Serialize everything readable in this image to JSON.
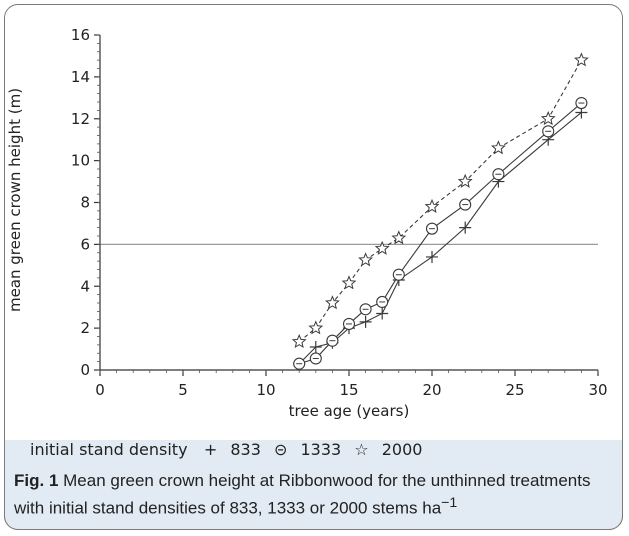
{
  "chart_data": {
    "type": "line",
    "xlabel": "tree age (years)",
    "ylabel": "mean green crown height (m)",
    "xlim": [
      0,
      30
    ],
    "ylim": [
      0,
      16
    ],
    "xticks": [
      0,
      5,
      10,
      15,
      20,
      25,
      30
    ],
    "yticks": [
      0,
      2,
      4,
      6,
      8,
      10,
      12,
      14,
      16
    ],
    "reference_line_y": 6,
    "legend_title": "initial stand density",
    "legend_placement": "bottom",
    "series": [
      {
        "name": "833",
        "marker": "plus",
        "line": "solid",
        "x": [
          12,
          13,
          14,
          15,
          16,
          17,
          18,
          20,
          22,
          24,
          27,
          29
        ],
        "y": [
          0.3,
          1.1,
          1.3,
          2.0,
          2.3,
          2.7,
          4.3,
          5.4,
          6.8,
          9.0,
          11.0,
          12.3
        ]
      },
      {
        "name": "1333",
        "marker": "circle",
        "line": "solid",
        "x": [
          12,
          13,
          14,
          15,
          16,
          17,
          18,
          20,
          22,
          24,
          27,
          29
        ],
        "y": [
          0.3,
          0.55,
          1.4,
          2.2,
          2.9,
          3.25,
          4.55,
          6.75,
          7.9,
          9.35,
          11.4,
          12.75
        ]
      },
      {
        "name": "2000",
        "marker": "star",
        "line": "dashed",
        "x": [
          12,
          13,
          14,
          15,
          16,
          17,
          18,
          20,
          22,
          24,
          27,
          29
        ],
        "y": [
          1.35,
          2.0,
          3.2,
          4.15,
          5.25,
          5.8,
          6.3,
          7.8,
          9.0,
          10.6,
          12.0,
          14.8
        ]
      }
    ]
  },
  "caption": {
    "label": "Fig. 1",
    "text": "Mean green crown height at Ribbonwood for the unthinned treatments with initial stand densities of 833, 1333 or 2000 stems ha",
    "unit_superscript": "−1"
  },
  "colors": {
    "line": "#3a3a3a",
    "reference": "#9a9a9a",
    "caption_band": "#e2eaf3"
  }
}
